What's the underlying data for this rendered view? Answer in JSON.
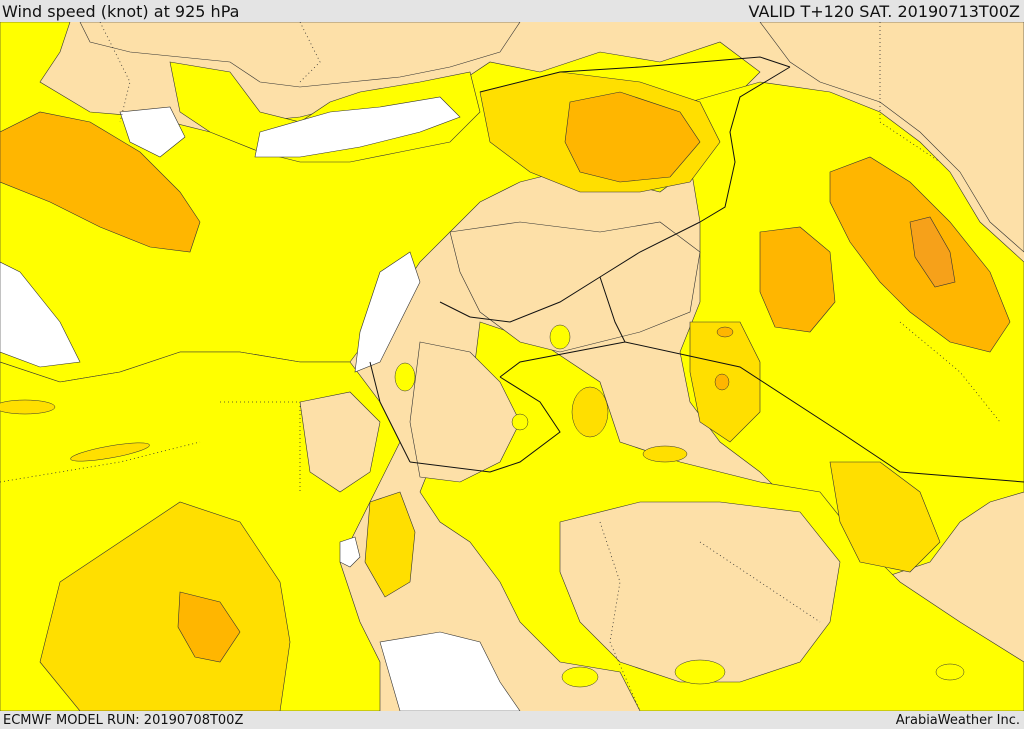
{
  "header": {
    "title": "Wind speed (knot) at 925 hPa",
    "valid": "VALID T+120 SAT. 20190713T00Z"
  },
  "footer": {
    "model_run": "ECMWF MODEL RUN: 20190708T00Z",
    "credit": "ArabiaWeather Inc."
  },
  "legend_colors": {
    "calm": "#ffffff",
    "light": "#fde0a8",
    "moderate": "#ffff00",
    "fresh": "#ffdf00",
    "strong": "#ffb600",
    "very_strong": "#f6a11a"
  },
  "map_features": [
    "wind-speed-shading",
    "contour-lines",
    "country-borders",
    "coastlines"
  ]
}
